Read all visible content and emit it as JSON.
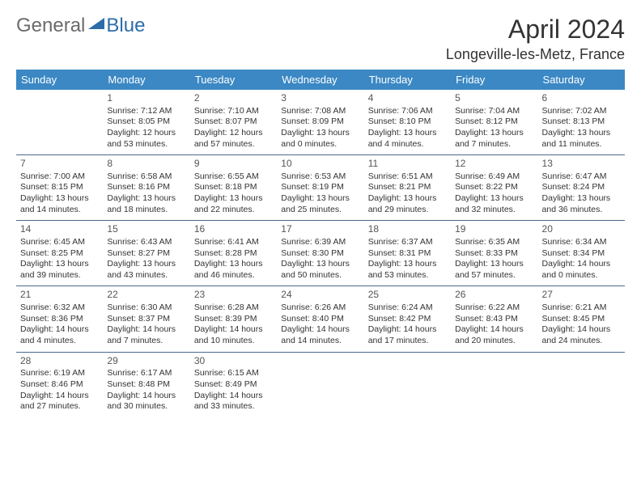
{
  "logo": {
    "general": "General",
    "blue": "Blue"
  },
  "title": "April 2024",
  "subtitle": "Longeville-les-Metz, France",
  "colors": {
    "header_bg": "#3b88c4",
    "header_text": "#ffffff",
    "sep_border": "#4a6a8a",
    "logo_gray": "#6b6b6b",
    "logo_blue": "#2c6ca8",
    "text": "#333333"
  },
  "daynames": [
    "Sunday",
    "Monday",
    "Tuesday",
    "Wednesday",
    "Thursday",
    "Friday",
    "Saturday"
  ],
  "weeks": [
    [
      null,
      {
        "n": "1",
        "sr": "Sunrise: 7:12 AM",
        "ss": "Sunset: 8:05 PM",
        "d1": "Daylight: 12 hours",
        "d2": "and 53 minutes."
      },
      {
        "n": "2",
        "sr": "Sunrise: 7:10 AM",
        "ss": "Sunset: 8:07 PM",
        "d1": "Daylight: 12 hours",
        "d2": "and 57 minutes."
      },
      {
        "n": "3",
        "sr": "Sunrise: 7:08 AM",
        "ss": "Sunset: 8:09 PM",
        "d1": "Daylight: 13 hours",
        "d2": "and 0 minutes."
      },
      {
        "n": "4",
        "sr": "Sunrise: 7:06 AM",
        "ss": "Sunset: 8:10 PM",
        "d1": "Daylight: 13 hours",
        "d2": "and 4 minutes."
      },
      {
        "n": "5",
        "sr": "Sunrise: 7:04 AM",
        "ss": "Sunset: 8:12 PM",
        "d1": "Daylight: 13 hours",
        "d2": "and 7 minutes."
      },
      {
        "n": "6",
        "sr": "Sunrise: 7:02 AM",
        "ss": "Sunset: 8:13 PM",
        "d1": "Daylight: 13 hours",
        "d2": "and 11 minutes."
      }
    ],
    [
      {
        "n": "7",
        "sr": "Sunrise: 7:00 AM",
        "ss": "Sunset: 8:15 PM",
        "d1": "Daylight: 13 hours",
        "d2": "and 14 minutes."
      },
      {
        "n": "8",
        "sr": "Sunrise: 6:58 AM",
        "ss": "Sunset: 8:16 PM",
        "d1": "Daylight: 13 hours",
        "d2": "and 18 minutes."
      },
      {
        "n": "9",
        "sr": "Sunrise: 6:55 AM",
        "ss": "Sunset: 8:18 PM",
        "d1": "Daylight: 13 hours",
        "d2": "and 22 minutes."
      },
      {
        "n": "10",
        "sr": "Sunrise: 6:53 AM",
        "ss": "Sunset: 8:19 PM",
        "d1": "Daylight: 13 hours",
        "d2": "and 25 minutes."
      },
      {
        "n": "11",
        "sr": "Sunrise: 6:51 AM",
        "ss": "Sunset: 8:21 PM",
        "d1": "Daylight: 13 hours",
        "d2": "and 29 minutes."
      },
      {
        "n": "12",
        "sr": "Sunrise: 6:49 AM",
        "ss": "Sunset: 8:22 PM",
        "d1": "Daylight: 13 hours",
        "d2": "and 32 minutes."
      },
      {
        "n": "13",
        "sr": "Sunrise: 6:47 AM",
        "ss": "Sunset: 8:24 PM",
        "d1": "Daylight: 13 hours",
        "d2": "and 36 minutes."
      }
    ],
    [
      {
        "n": "14",
        "sr": "Sunrise: 6:45 AM",
        "ss": "Sunset: 8:25 PM",
        "d1": "Daylight: 13 hours",
        "d2": "and 39 minutes."
      },
      {
        "n": "15",
        "sr": "Sunrise: 6:43 AM",
        "ss": "Sunset: 8:27 PM",
        "d1": "Daylight: 13 hours",
        "d2": "and 43 minutes."
      },
      {
        "n": "16",
        "sr": "Sunrise: 6:41 AM",
        "ss": "Sunset: 8:28 PM",
        "d1": "Daylight: 13 hours",
        "d2": "and 46 minutes."
      },
      {
        "n": "17",
        "sr": "Sunrise: 6:39 AM",
        "ss": "Sunset: 8:30 PM",
        "d1": "Daylight: 13 hours",
        "d2": "and 50 minutes."
      },
      {
        "n": "18",
        "sr": "Sunrise: 6:37 AM",
        "ss": "Sunset: 8:31 PM",
        "d1": "Daylight: 13 hours",
        "d2": "and 53 minutes."
      },
      {
        "n": "19",
        "sr": "Sunrise: 6:35 AM",
        "ss": "Sunset: 8:33 PM",
        "d1": "Daylight: 13 hours",
        "d2": "and 57 minutes."
      },
      {
        "n": "20",
        "sr": "Sunrise: 6:34 AM",
        "ss": "Sunset: 8:34 PM",
        "d1": "Daylight: 14 hours",
        "d2": "and 0 minutes."
      }
    ],
    [
      {
        "n": "21",
        "sr": "Sunrise: 6:32 AM",
        "ss": "Sunset: 8:36 PM",
        "d1": "Daylight: 14 hours",
        "d2": "and 4 minutes."
      },
      {
        "n": "22",
        "sr": "Sunrise: 6:30 AM",
        "ss": "Sunset: 8:37 PM",
        "d1": "Daylight: 14 hours",
        "d2": "and 7 minutes."
      },
      {
        "n": "23",
        "sr": "Sunrise: 6:28 AM",
        "ss": "Sunset: 8:39 PM",
        "d1": "Daylight: 14 hours",
        "d2": "and 10 minutes."
      },
      {
        "n": "24",
        "sr": "Sunrise: 6:26 AM",
        "ss": "Sunset: 8:40 PM",
        "d1": "Daylight: 14 hours",
        "d2": "and 14 minutes."
      },
      {
        "n": "25",
        "sr": "Sunrise: 6:24 AM",
        "ss": "Sunset: 8:42 PM",
        "d1": "Daylight: 14 hours",
        "d2": "and 17 minutes."
      },
      {
        "n": "26",
        "sr": "Sunrise: 6:22 AM",
        "ss": "Sunset: 8:43 PM",
        "d1": "Daylight: 14 hours",
        "d2": "and 20 minutes."
      },
      {
        "n": "27",
        "sr": "Sunrise: 6:21 AM",
        "ss": "Sunset: 8:45 PM",
        "d1": "Daylight: 14 hours",
        "d2": "and 24 minutes."
      }
    ],
    [
      {
        "n": "28",
        "sr": "Sunrise: 6:19 AM",
        "ss": "Sunset: 8:46 PM",
        "d1": "Daylight: 14 hours",
        "d2": "and 27 minutes."
      },
      {
        "n": "29",
        "sr": "Sunrise: 6:17 AM",
        "ss": "Sunset: 8:48 PM",
        "d1": "Daylight: 14 hours",
        "d2": "and 30 minutes."
      },
      {
        "n": "30",
        "sr": "Sunrise: 6:15 AM",
        "ss": "Sunset: 8:49 PM",
        "d1": "Daylight: 14 hours",
        "d2": "and 33 minutes."
      },
      null,
      null,
      null,
      null
    ]
  ]
}
